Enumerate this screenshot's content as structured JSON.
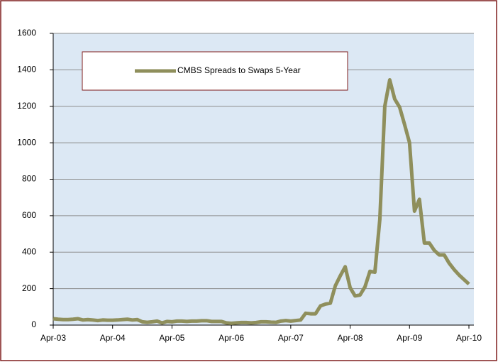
{
  "chart_data": {
    "type": "line",
    "categories": [
      "Apr-03",
      null,
      null,
      null,
      null,
      null,
      null,
      null,
      null,
      null,
      null,
      null,
      "Apr-04",
      null,
      null,
      null,
      null,
      null,
      null,
      null,
      null,
      null,
      null,
      null,
      "Apr-05",
      null,
      null,
      null,
      null,
      null,
      null,
      null,
      null,
      null,
      null,
      null,
      "Apr-06",
      null,
      null,
      null,
      null,
      null,
      null,
      null,
      null,
      null,
      null,
      null,
      "Apr-07",
      null,
      null,
      null,
      null,
      null,
      null,
      null,
      null,
      null,
      null,
      null,
      "Apr-08",
      null,
      null,
      null,
      null,
      null,
      null,
      null,
      null,
      null,
      null,
      null,
      "Apr-09",
      null,
      null,
      null,
      null,
      null,
      null,
      null,
      null,
      null,
      null,
      null,
      "Apr-10"
    ],
    "series": [
      {
        "name": "CMBS Spreads to Swaps 5-Year",
        "color": "#8f8f5c",
        "values": [
          35,
          32,
          30,
          30,
          32,
          35,
          28,
          30,
          28,
          25,
          28,
          27,
          27,
          28,
          30,
          32,
          28,
          30,
          18,
          15,
          18,
          22,
          12,
          20,
          18,
          22,
          22,
          20,
          22,
          22,
          24,
          24,
          20,
          20,
          20,
          12,
          10,
          12,
          14,
          14,
          12,
          14,
          18,
          18,
          16,
          15,
          22,
          25,
          22,
          25,
          28,
          65,
          62,
          62,
          105,
          115,
          120,
          215,
          270,
          320,
          205,
          160,
          165,
          210,
          295,
          290,
          580,
          1200,
          1345,
          1240,
          1195,
          1100,
          1000,
          625,
          690,
          450,
          450,
          410,
          385,
          385,
          340,
          305,
          275,
          250,
          225
        ]
      }
    ],
    "ylim": [
      0,
      1600
    ],
    "yticks": [
      0,
      200,
      400,
      600,
      800,
      1000,
      1200,
      1400,
      1600
    ],
    "grid": true,
    "legend": "top-left",
    "plot_background": "#dce8f4"
  }
}
